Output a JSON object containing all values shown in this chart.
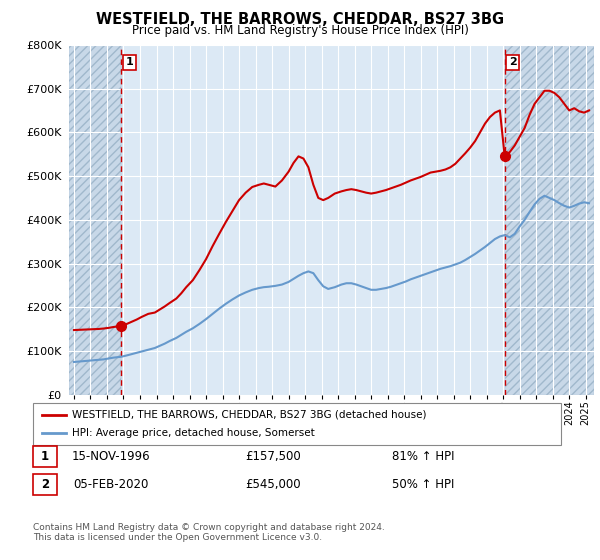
{
  "title": "WESTFIELD, THE BARROWS, CHEDDAR, BS27 3BG",
  "subtitle": "Price paid vs. HM Land Registry's House Price Index (HPI)",
  "legend_label_red": "WESTFIELD, THE BARROWS, CHEDDAR, BS27 3BG (detached house)",
  "legend_label_blue": "HPI: Average price, detached house, Somerset",
  "footnote1": "Contains HM Land Registry data © Crown copyright and database right 2024.",
  "footnote2": "This data is licensed under the Open Government Licence v3.0.",
  "marker1_date": "15-NOV-1996",
  "marker1_price": "£157,500",
  "marker1_hpi": "81% ↑ HPI",
  "marker2_date": "05-FEB-2020",
  "marker2_price": "£545,000",
  "marker2_hpi": "50% ↑ HPI",
  "marker1_x": 1996.87,
  "marker1_y": 157500,
  "marker2_x": 2020.09,
  "marker2_y": 545000,
  "vline1_x": 1996.87,
  "vline2_x": 2020.09,
  "ylim": [
    0,
    800000
  ],
  "xlim": [
    1993.7,
    2025.5
  ],
  "red_color": "#cc0000",
  "blue_color": "#6699cc",
  "plot_bg_color": "#dce9f5",
  "hatch_bg_color": "#c8d8e8",
  "grid_color": "#ffffff",
  "fig_bg_color": "#ffffff",
  "red_x": [
    1994.0,
    1994.3,
    1994.6,
    1994.9,
    1995.2,
    1995.5,
    1995.8,
    1996.1,
    1996.4,
    1996.87,
    1997.2,
    1997.5,
    1997.8,
    1998.1,
    1998.5,
    1998.9,
    1999.2,
    1999.5,
    1999.8,
    2000.2,
    2000.5,
    2000.8,
    2001.2,
    2001.6,
    2002.0,
    2002.4,
    2002.8,
    2003.2,
    2003.6,
    2004.0,
    2004.4,
    2004.8,
    2005.2,
    2005.5,
    2005.8,
    2006.2,
    2006.6,
    2007.0,
    2007.3,
    2007.6,
    2007.9,
    2008.2,
    2008.5,
    2008.8,
    2009.1,
    2009.4,
    2009.8,
    2010.2,
    2010.5,
    2010.8,
    2011.1,
    2011.4,
    2011.7,
    2012.0,
    2012.3,
    2012.6,
    2012.9,
    2013.2,
    2013.5,
    2013.8,
    2014.1,
    2014.4,
    2014.7,
    2015.0,
    2015.3,
    2015.6,
    2015.9,
    2016.2,
    2016.5,
    2016.8,
    2017.1,
    2017.4,
    2017.7,
    2018.0,
    2018.3,
    2018.6,
    2018.9,
    2019.2,
    2019.5,
    2019.8,
    2020.09,
    2020.4,
    2020.7,
    2021.0,
    2021.3,
    2021.6,
    2021.9,
    2022.2,
    2022.5,
    2022.8,
    2023.1,
    2023.4,
    2023.7,
    2024.0,
    2024.3,
    2024.6,
    2024.9,
    2025.2
  ],
  "red_y": [
    148000,
    148500,
    149000,
    149500,
    150000,
    150500,
    151500,
    153000,
    155000,
    157500,
    162000,
    167000,
    172000,
    178000,
    185000,
    188000,
    195000,
    202000,
    210000,
    220000,
    232000,
    246000,
    262000,
    285000,
    310000,
    340000,
    368000,
    395000,
    420000,
    445000,
    462000,
    475000,
    480000,
    483000,
    480000,
    476000,
    490000,
    510000,
    530000,
    545000,
    540000,
    520000,
    480000,
    450000,
    445000,
    450000,
    460000,
    465000,
    468000,
    470000,
    468000,
    465000,
    462000,
    460000,
    462000,
    465000,
    468000,
    472000,
    476000,
    480000,
    485000,
    490000,
    494000,
    498000,
    503000,
    508000,
    510000,
    512000,
    515000,
    520000,
    528000,
    540000,
    552000,
    565000,
    580000,
    600000,
    620000,
    635000,
    645000,
    650000,
    545000,
    555000,
    570000,
    590000,
    610000,
    640000,
    665000,
    680000,
    695000,
    695000,
    690000,
    680000,
    665000,
    650000,
    655000,
    648000,
    645000,
    650000
  ],
  "blue_x": [
    1994.0,
    1994.3,
    1994.6,
    1994.9,
    1995.2,
    1995.5,
    1995.8,
    1996.1,
    1996.4,
    1996.87,
    1997.2,
    1997.5,
    1997.8,
    1998.1,
    1998.5,
    1998.9,
    1999.2,
    1999.5,
    1999.8,
    2000.2,
    2000.5,
    2000.8,
    2001.2,
    2001.6,
    2002.0,
    2002.4,
    2002.8,
    2003.2,
    2003.6,
    2004.0,
    2004.4,
    2004.8,
    2005.2,
    2005.5,
    2005.8,
    2006.2,
    2006.6,
    2007.0,
    2007.3,
    2007.6,
    2007.9,
    2008.2,
    2008.5,
    2008.8,
    2009.1,
    2009.4,
    2009.8,
    2010.2,
    2010.5,
    2010.8,
    2011.1,
    2011.4,
    2011.7,
    2012.0,
    2012.3,
    2012.6,
    2012.9,
    2013.2,
    2013.5,
    2013.8,
    2014.1,
    2014.4,
    2014.7,
    2015.0,
    2015.3,
    2015.6,
    2015.9,
    2016.2,
    2016.5,
    2016.8,
    2017.1,
    2017.4,
    2017.7,
    2018.0,
    2018.3,
    2018.6,
    2018.9,
    2019.2,
    2019.5,
    2019.8,
    2020.09,
    2020.4,
    2020.7,
    2021.0,
    2021.3,
    2021.6,
    2021.9,
    2022.2,
    2022.5,
    2022.8,
    2023.1,
    2023.4,
    2023.7,
    2024.0,
    2024.3,
    2024.6,
    2024.9,
    2025.2
  ],
  "blue_y": [
    75000,
    76000,
    77000,
    78000,
    79000,
    80000,
    81000,
    83000,
    85000,
    87000,
    90000,
    93000,
    96000,
    99000,
    103000,
    107000,
    112000,
    117000,
    123000,
    130000,
    137000,
    144000,
    152000,
    162000,
    173000,
    185000,
    197000,
    208000,
    218000,
    227000,
    234000,
    240000,
    244000,
    246000,
    247000,
    249000,
    252000,
    258000,
    265000,
    272000,
    278000,
    282000,
    278000,
    262000,
    248000,
    242000,
    246000,
    252000,
    255000,
    255000,
    252000,
    248000,
    244000,
    240000,
    240000,
    242000,
    244000,
    247000,
    251000,
    255000,
    259000,
    264000,
    268000,
    272000,
    276000,
    280000,
    284000,
    288000,
    291000,
    294000,
    298000,
    302000,
    308000,
    315000,
    322000,
    330000,
    338000,
    347000,
    356000,
    362000,
    365000,
    360000,
    368000,
    385000,
    400000,
    418000,
    435000,
    448000,
    455000,
    450000,
    445000,
    438000,
    432000,
    428000,
    432000,
    437000,
    440000,
    438000
  ]
}
